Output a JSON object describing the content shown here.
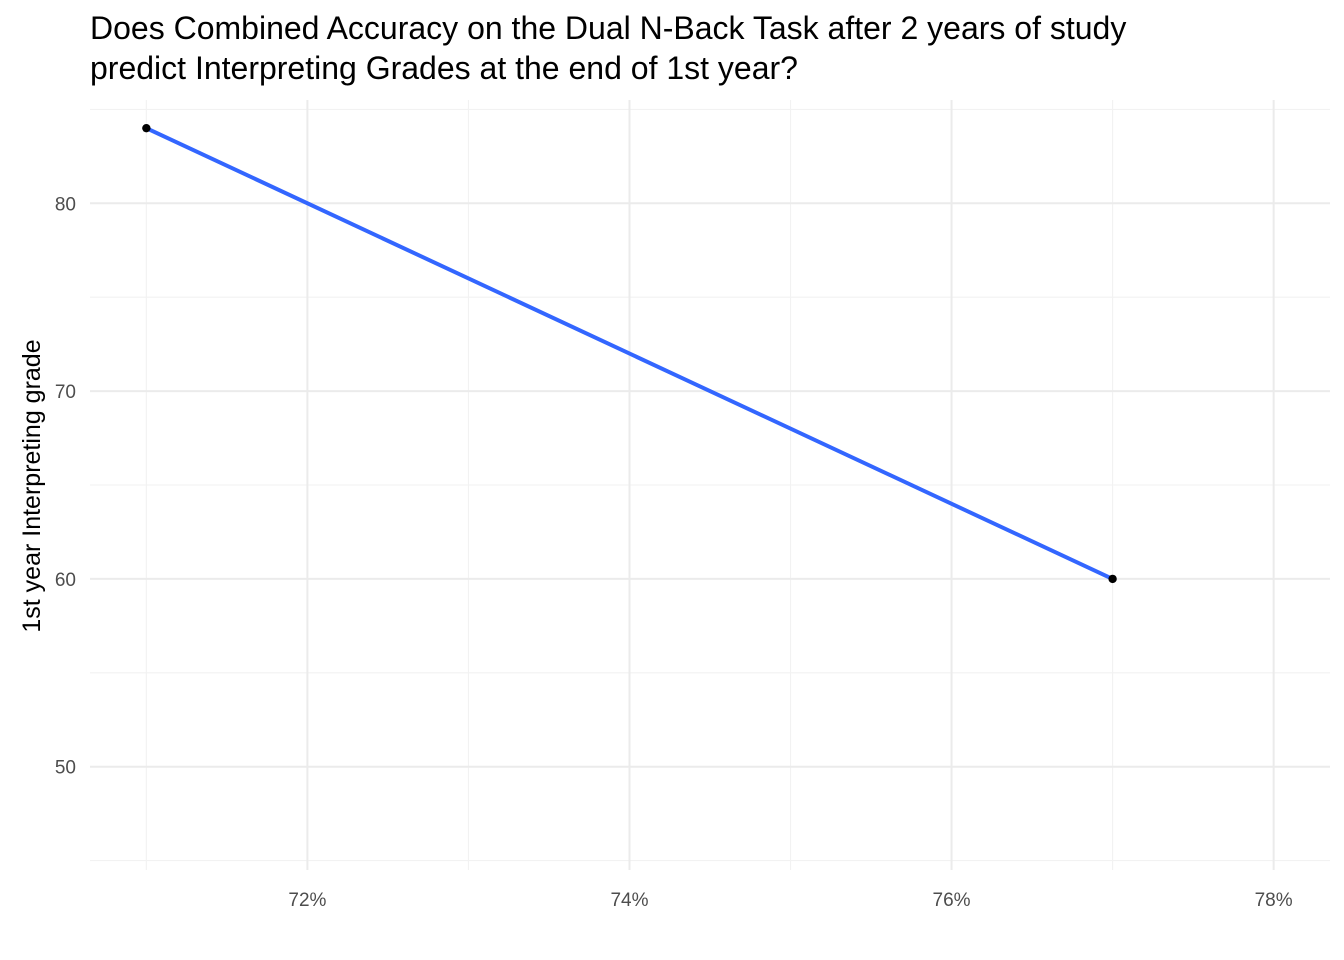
{
  "chart_data": {
    "type": "line",
    "title_lines": [
      "Does Combined Accuracy on the Dual N-Back Task after 2 years of study",
      "predict Interpreting Grades at the end of 1st year?"
    ],
    "xlabel": "",
    "ylabel": "1st year Interpreting grade",
    "x_format": "percent",
    "xlim": [
      0.7065,
      0.7835
    ],
    "ylim": [
      44.5,
      85.5
    ],
    "x_major_ticks": [
      0.72,
      0.74,
      0.76,
      0.78
    ],
    "x_tick_labels": [
      "72%",
      "74%",
      "76%",
      "78%"
    ],
    "x_minor_ticks": [
      0.71,
      0.73,
      0.75,
      0.77
    ],
    "y_major_ticks": [
      50,
      60,
      70,
      80
    ],
    "y_tick_labels": [
      "50",
      "60",
      "70",
      "80"
    ],
    "y_minor_ticks": [
      45,
      55,
      65,
      75,
      85
    ],
    "grid": true,
    "legend": "none",
    "points": [
      {
        "x": 0.71,
        "y": 84
      },
      {
        "x": 0.77,
        "y": 60
      }
    ],
    "fit_line": {
      "x": [
        0.71,
        0.77
      ],
      "y": [
        84,
        60
      ]
    },
    "colors": {
      "fit_line": "#3366FF",
      "points": "#000000",
      "grid_major": "#EBEBEB",
      "grid_minor": "#F2F2F2",
      "tick_text": "#4D4D4D",
      "title_text": "#000000"
    }
  }
}
